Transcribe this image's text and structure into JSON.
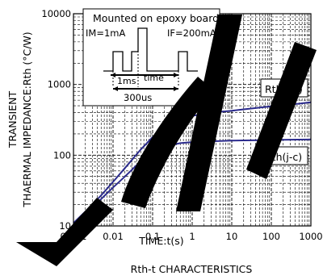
{
  "chart_data": {
    "type": "line",
    "title": "Rth-t CHARACTERISTICS",
    "xlabel": "TIME:t(s)",
    "ylabel_line1": "TRANSIENT",
    "ylabel_line2": "THAERMAL IMPEDANCE:Rth (°C/W)",
    "xscale": "log",
    "yscale": "log",
    "xlim": [
      0.001,
      1000
    ],
    "ylim": [
      10,
      10000
    ],
    "x_ticks": [
      {
        "value": 0.001,
        "label": "0.001"
      },
      {
        "value": 0.01,
        "label": "0.01"
      },
      {
        "value": 0.1,
        "label": "0.1"
      },
      {
        "value": 1,
        "label": "1"
      },
      {
        "value": 10,
        "label": "10"
      },
      {
        "value": 100,
        "label": "100"
      },
      {
        "value": 1000,
        "label": "1000"
      }
    ],
    "y_ticks": [
      {
        "value": 10,
        "label": "10"
      },
      {
        "value": 100,
        "label": "100"
      },
      {
        "value": 1000,
        "label": "1000"
      },
      {
        "value": 10000,
        "label": "10000"
      }
    ],
    "grid": true,
    "series": [
      {
        "name": "Rth(j-a)",
        "color": "#2b2b8c",
        "x": [
          0.001,
          0.002,
          0.005,
          0.01,
          0.02,
          0.05,
          0.1,
          0.2,
          0.5,
          1,
          2,
          5,
          10,
          20,
          50,
          100,
          200,
          500,
          1000
        ],
        "y": [
          11,
          16,
          27,
          42,
          66,
          120,
          180,
          245,
          320,
          360,
          385,
          410,
          425,
          445,
          470,
          490,
          510,
          535,
          560
        ]
      },
      {
        "name": "Rth(j-c)",
        "color": "#2b2b8c",
        "x": [
          0.001,
          0.002,
          0.005,
          0.01,
          0.02,
          0.05,
          0.1,
          0.2,
          0.5,
          1,
          2,
          5,
          10,
          20,
          50,
          100,
          200,
          500,
          1000
        ],
        "y": [
          11,
          15,
          24,
          35,
          50,
          82,
          110,
          133,
          148,
          153,
          156,
          159,
          161,
          162,
          163,
          164,
          165,
          166,
          167
        ]
      }
    ],
    "inset": {
      "title": "Mounted on epoxy board",
      "left_label": "IM=1mA",
      "right_label": "IF=200mA",
      "pulse_label": "1ms",
      "time_label": "time",
      "period_label": "300us"
    }
  },
  "colors": {
    "curve": "#2b2b8c",
    "watermark": "#000000",
    "grid": "#000000"
  }
}
